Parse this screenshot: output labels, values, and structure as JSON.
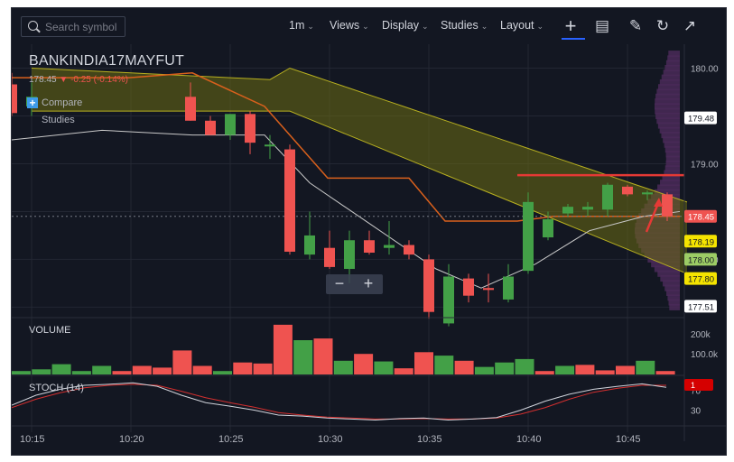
{
  "toolbar": {
    "search_placeholder": "Search symbol",
    "interval": "1m",
    "views": "Views",
    "display": "Display",
    "studies": "Studies",
    "layout": "Layout"
  },
  "legend": {
    "symbol": "BANKINDIA17MAYFUT",
    "last": "178.45",
    "change": "-0.25 (-0.14%)",
    "compare": "Compare",
    "studies": "Studies"
  },
  "panes": {
    "volume": "VOLUME",
    "stoch": "STOCH (14)"
  },
  "colors": {
    "background": "#131722",
    "up": "#43a047",
    "down": "#ef5350",
    "cloud": "#6b6b12",
    "volume_profile": "#4a2a58",
    "red_line": "#e53935"
  },
  "chart_data": [
    {
      "type": "candlestick",
      "x_ticks": [
        "10:15",
        "10:20",
        "10:25",
        "10:30",
        "10:35",
        "10:40",
        "10:45"
      ],
      "ylim": [
        177.4,
        180.25
      ],
      "y_ticks": [
        "180.00",
        "179.00",
        "178.00"
      ],
      "price_labels": [
        "179.48",
        "178.45",
        "178.19",
        "178.00",
        "177.80",
        "177.51"
      ],
      "candles": [
        {
          "t": "10:14",
          "o": 179.83,
          "h": 179.95,
          "l": 179.5,
          "c": 179.53
        },
        {
          "t": "10:15",
          "o": 179.6,
          "h": 179.85,
          "l": 179.5,
          "c": 179.7
        },
        {
          "t": "10:23",
          "o": 179.7,
          "h": 179.85,
          "l": 179.45,
          "c": 179.45
        },
        {
          "t": "10:24",
          "o": 179.45,
          "h": 179.5,
          "l": 179.3,
          "c": 179.3
        },
        {
          "t": "10:25",
          "o": 179.3,
          "h": 179.52,
          "l": 179.25,
          "c": 179.52
        },
        {
          "t": "10:26",
          "o": 179.52,
          "h": 179.55,
          "l": 179.1,
          "c": 179.22
        },
        {
          "t": "10:27",
          "o": 179.2,
          "h": 179.3,
          "l": 179.05,
          "c": 179.2
        },
        {
          "t": "10:28",
          "o": 179.15,
          "h": 179.2,
          "l": 178.05,
          "c": 178.08
        },
        {
          "t": "10:29",
          "o": 178.05,
          "h": 178.5,
          "l": 178.0,
          "c": 178.25
        },
        {
          "t": "10:30",
          "o": 178.12,
          "h": 178.3,
          "l": 177.9,
          "c": 177.92
        },
        {
          "t": "10:31",
          "o": 177.9,
          "h": 178.3,
          "l": 177.75,
          "c": 178.2
        },
        {
          "t": "10:32",
          "o": 178.2,
          "h": 178.3,
          "l": 178.05,
          "c": 178.07
        },
        {
          "t": "10:33",
          "o": 178.12,
          "h": 178.4,
          "l": 178.05,
          "c": 178.15
        },
        {
          "t": "10:34",
          "o": 178.15,
          "h": 178.2,
          "l": 178.0,
          "c": 178.05
        },
        {
          "t": "10:35",
          "o": 178.0,
          "h": 178.05,
          "l": 177.38,
          "c": 177.45
        },
        {
          "t": "10:36",
          "o": 177.33,
          "h": 177.95,
          "l": 177.3,
          "c": 177.82
        },
        {
          "t": "10:37",
          "o": 177.8,
          "h": 177.85,
          "l": 177.55,
          "c": 177.62
        },
        {
          "t": "10:38",
          "o": 177.7,
          "h": 177.85,
          "l": 177.55,
          "c": 177.68
        },
        {
          "t": "10:39",
          "o": 177.58,
          "h": 177.95,
          "l": 177.55,
          "c": 177.82
        },
        {
          "t": "10:40",
          "o": 177.88,
          "h": 178.7,
          "l": 177.85,
          "c": 178.6
        },
        {
          "t": "10:41",
          "o": 178.23,
          "h": 178.5,
          "l": 178.2,
          "c": 178.42
        },
        {
          "t": "10:42",
          "o": 178.48,
          "h": 178.58,
          "l": 178.45,
          "c": 178.55
        },
        {
          "t": "10:43",
          "o": 178.52,
          "h": 178.6,
          "l": 178.45,
          "c": 178.55
        },
        {
          "t": "10:44",
          "o": 178.52,
          "h": 178.8,
          "l": 178.45,
          "c": 178.78
        },
        {
          "t": "10:45",
          "o": 178.76,
          "h": 178.78,
          "l": 178.66,
          "c": 178.68
        },
        {
          "t": "10:46",
          "o": 178.68,
          "h": 178.72,
          "l": 178.62,
          "c": 178.7
        },
        {
          "t": "10:47",
          "o": 178.68,
          "h": 178.7,
          "l": 178.4,
          "c": 178.45
        }
      ],
      "red_level": 178.88
    },
    {
      "type": "bar",
      "title": "VOLUME",
      "y_ticks": [
        "200k",
        "100.0k"
      ],
      "bars": [
        {
          "dir": "up",
          "v": 10
        },
        {
          "dir": "up",
          "v": 15
        },
        {
          "dir": "up",
          "v": 30
        },
        {
          "dir": "up",
          "v": 10
        },
        {
          "dir": "up",
          "v": 25
        },
        {
          "dir": "down",
          "v": 10
        },
        {
          "dir": "down",
          "v": 25
        },
        {
          "dir": "down",
          "v": 20
        },
        {
          "dir": "down",
          "v": 70
        },
        {
          "dir": "down",
          "v": 25
        },
        {
          "dir": "up",
          "v": 10
        },
        {
          "dir": "down",
          "v": 35
        },
        {
          "dir": "down",
          "v": 32
        },
        {
          "dir": "down",
          "v": 145
        },
        {
          "dir": "up",
          "v": 100
        },
        {
          "dir": "down",
          "v": 105
        },
        {
          "dir": "up",
          "v": 40
        },
        {
          "dir": "down",
          "v": 60
        },
        {
          "dir": "up",
          "v": 38
        },
        {
          "dir": "down",
          "v": 18
        },
        {
          "dir": "down",
          "v": 65
        },
        {
          "dir": "up",
          "v": 55
        },
        {
          "dir": "down",
          "v": 40
        },
        {
          "dir": "up",
          "v": 22
        },
        {
          "dir": "up",
          "v": 35
        },
        {
          "dir": "up",
          "v": 45
        },
        {
          "dir": "down",
          "v": 10
        },
        {
          "dir": "up",
          "v": 25
        },
        {
          "dir": "down",
          "v": 28
        },
        {
          "dir": "down",
          "v": 12
        },
        {
          "dir": "down",
          "v": 25
        },
        {
          "dir": "up",
          "v": 40
        },
        {
          "dir": "down",
          "v": 10
        }
      ]
    },
    {
      "type": "line",
      "title": "STOCH (14)",
      "y_ticks": [
        "70",
        "30"
      ],
      "ylim": [
        0,
        100
      ],
      "k": [
        40,
        60,
        72,
        80,
        82,
        85,
        78,
        60,
        45,
        38,
        30,
        20,
        18,
        14,
        12,
        10,
        13,
        14,
        10,
        12,
        15,
        30,
        48,
        62,
        72,
        78,
        83,
        76
      ],
      "d": [
        35,
        52,
        65,
        75,
        80,
        82,
        80,
        68,
        55,
        45,
        36,
        25,
        20,
        16,
        14,
        12,
        12,
        13,
        12,
        12,
        14,
        22,
        35,
        52,
        66,
        74,
        80,
        80
      ],
      "last_label": "1"
    }
  ]
}
